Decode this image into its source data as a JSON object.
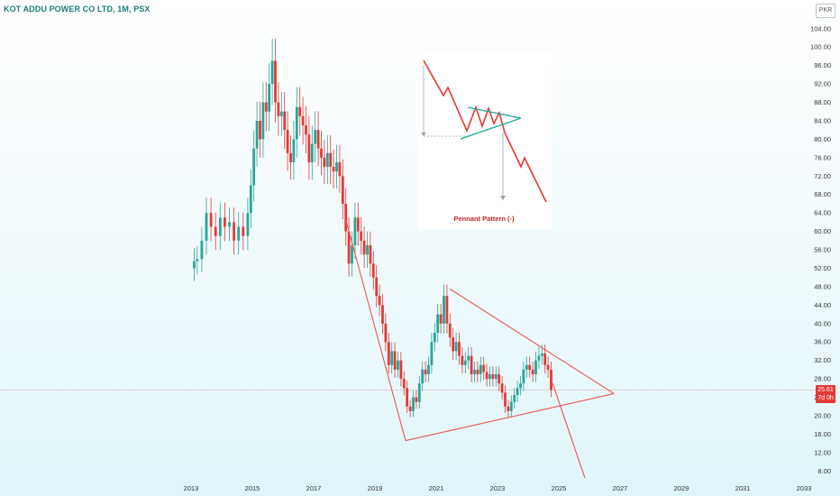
{
  "header": {
    "title": "KOT ADDU POWER CO LTD, 1M, PSX",
    "currency": "PKR"
  },
  "price_badge": {
    "price": "25.61",
    "countdown": "7d 0h"
  },
  "inset": {
    "caption": "Pennant Pattern (-)"
  },
  "colors": {
    "up": "#26a69a",
    "down": "#e53935",
    "pattern_line": "#ef5350"
  },
  "chart_data": {
    "type": "candlestick",
    "title": "KOT ADDU POWER CO LTD, 1M, PSX",
    "ylim": [
      6,
      106
    ],
    "xlim": [
      2012.0,
      2033.3
    ],
    "y_ticks": [
      "8.00",
      "12.00",
      "16.00",
      "20.00",
      "24.00",
      "28.00",
      "32.00",
      "36.00",
      "40.00",
      "44.00",
      "48.00",
      "52.00",
      "56.00",
      "60.00",
      "64.00",
      "68.00",
      "72.00",
      "76.00",
      "80.00",
      "84.00",
      "88.00",
      "92.00",
      "96.00",
      "100.00",
      "104.00"
    ],
    "x_ticks": [
      "2013",
      "2015",
      "2017",
      "2019",
      "2021",
      "2023",
      "2025",
      "2027",
      "2029",
      "2031",
      "2033"
    ],
    "last_price": 25.61,
    "closes": [
      [
        2013.0,
        52.0
      ],
      [
        2013.1,
        53.5
      ],
      [
        2013.2,
        54.0
      ],
      [
        2013.35,
        58.0
      ],
      [
        2013.5,
        64.0
      ],
      [
        2013.65,
        61.0
      ],
      [
        2013.8,
        59.0
      ],
      [
        2013.95,
        63.0
      ],
      [
        2014.1,
        61.0
      ],
      [
        2014.25,
        62.0
      ],
      [
        2014.4,
        58.0
      ],
      [
        2014.55,
        61.0
      ],
      [
        2014.7,
        59.0
      ],
      [
        2014.85,
        64.0
      ],
      [
        2014.95,
        70.0
      ],
      [
        2015.05,
        78.0
      ],
      [
        2015.15,
        84.0
      ],
      [
        2015.25,
        80.0
      ],
      [
        2015.35,
        88.0
      ],
      [
        2015.45,
        86.0
      ],
      [
        2015.55,
        92.0
      ],
      [
        2015.65,
        97.0
      ],
      [
        2015.75,
        88.0
      ],
      [
        2015.85,
        85.0
      ],
      [
        2015.95,
        86.0
      ],
      [
        2016.05,
        82.0
      ],
      [
        2016.15,
        77.0
      ],
      [
        2016.25,
        75.0
      ],
      [
        2016.35,
        80.0
      ],
      [
        2016.45,
        87.0
      ],
      [
        2016.55,
        85.0
      ],
      [
        2016.65,
        83.0
      ],
      [
        2016.75,
        81.0
      ],
      [
        2016.85,
        75.0
      ],
      [
        2016.95,
        79.0
      ],
      [
        2017.05,
        82.0
      ],
      [
        2017.15,
        78.0
      ],
      [
        2017.25,
        76.0
      ],
      [
        2017.35,
        74.0
      ],
      [
        2017.45,
        77.0
      ],
      [
        2017.55,
        74.0
      ],
      [
        2017.65,
        73.0
      ],
      [
        2017.75,
        75.0
      ],
      [
        2017.85,
        72.0
      ],
      [
        2017.95,
        66.0
      ],
      [
        2018.05,
        60.0
      ],
      [
        2018.15,
        53.0
      ],
      [
        2018.25,
        57.0
      ],
      [
        2018.35,
        63.0
      ],
      [
        2018.45,
        60.0
      ],
      [
        2018.55,
        58.0
      ],
      [
        2018.65,
        55.0
      ],
      [
        2018.75,
        57.0
      ],
      [
        2018.85,
        53.0
      ],
      [
        2018.95,
        50.0
      ],
      [
        2019.05,
        46.0
      ],
      [
        2019.15,
        44.0
      ],
      [
        2019.25,
        40.0
      ],
      [
        2019.35,
        36.0
      ],
      [
        2019.45,
        31.0
      ],
      [
        2019.55,
        34.0
      ],
      [
        2019.65,
        30.0
      ],
      [
        2019.75,
        32.0
      ],
      [
        2019.85,
        28.0
      ],
      [
        2019.95,
        26.0
      ],
      [
        2020.05,
        22.0
      ],
      [
        2020.15,
        21.0
      ],
      [
        2020.25,
        24.0
      ],
      [
        2020.35,
        23.0
      ],
      [
        2020.45,
        27.0
      ],
      [
        2020.55,
        30.0
      ],
      [
        2020.65,
        29.0
      ],
      [
        2020.75,
        31.0
      ],
      [
        2020.85,
        36.0
      ],
      [
        2020.95,
        38.0
      ],
      [
        2021.05,
        42.0
      ],
      [
        2021.15,
        40.0
      ],
      [
        2021.25,
        46.0
      ],
      [
        2021.35,
        40.0
      ],
      [
        2021.45,
        37.0
      ],
      [
        2021.55,
        34.0
      ],
      [
        2021.65,
        36.0
      ],
      [
        2021.75,
        33.0
      ],
      [
        2021.85,
        31.0
      ],
      [
        2021.95,
        32.0
      ],
      [
        2022.05,
        33.0
      ],
      [
        2022.15,
        29.0
      ],
      [
        2022.25,
        30.0
      ],
      [
        2022.35,
        29.0
      ],
      [
        2022.45,
        31.0
      ],
      [
        2022.55,
        29.5
      ],
      [
        2022.65,
        28.0
      ],
      [
        2022.75,
        29.0
      ],
      [
        2022.85,
        28.0
      ],
      [
        2022.95,
        29.0
      ],
      [
        2023.05,
        27.0
      ],
      [
        2023.15,
        25.0
      ],
      [
        2023.25,
        22.0
      ],
      [
        2023.35,
        21.0
      ],
      [
        2023.45,
        23.0
      ],
      [
        2023.55,
        24.5
      ],
      [
        2023.65,
        26.0
      ],
      [
        2023.75,
        27.0
      ],
      [
        2023.85,
        30.0
      ],
      [
        2023.95,
        31.0
      ],
      [
        2024.05,
        30.0
      ],
      [
        2024.15,
        29.0
      ],
      [
        2024.25,
        32.0
      ],
      [
        2024.35,
        33.0
      ],
      [
        2024.45,
        33.5
      ],
      [
        2024.55,
        31.0
      ],
      [
        2024.65,
        30.0
      ],
      [
        2024.75,
        25.61
      ]
    ],
    "pattern": {
      "resistance": [
        [
          2021.45,
          47.5
        ],
        [
          2026.8,
          24.8
        ]
      ],
      "support": [
        [
          2020.0,
          14.6
        ],
        [
          2026.8,
          24.8
        ]
      ],
      "pole": [
        [
          2018.05,
          62.5
        ],
        [
          2020.0,
          14.6
        ]
      ],
      "projection": [
        [
          2024.8,
          27.0
        ],
        [
          2025.85,
          6.5
        ]
      ],
      "price_line": 25.61
    }
  }
}
